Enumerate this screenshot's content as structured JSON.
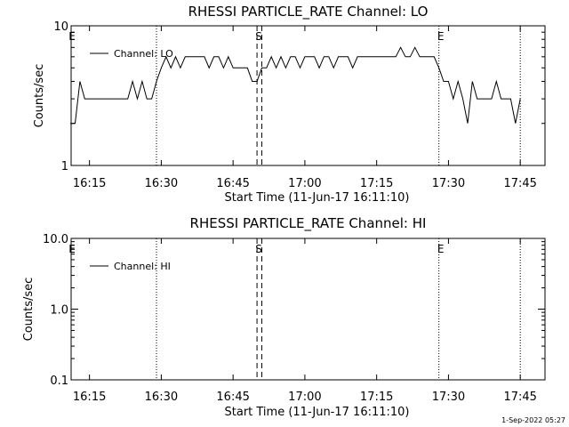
{
  "footer": {
    "timestamp": "1-Sep-2022 05:27"
  },
  "chart_data": [
    {
      "type": "line",
      "title": "RHESSI PARTICLE_RATE Channel: LO",
      "xlabel": "Start Time (11-Jun-17 16:11:10)",
      "ylabel": "Counts/sec",
      "yscale": "log",
      "ylim": [
        1,
        10
      ],
      "xlim": [
        "16:11:10",
        "17:50:10"
      ],
      "y_ticks": [
        "1",
        "10"
      ],
      "x_ticks": [
        "16:15",
        "16:30",
        "16:45",
        "17:00",
        "17:15",
        "17:30",
        "17:45"
      ],
      "legend": {
        "placement": "top-left",
        "entries": [
          "Channel: LO"
        ]
      },
      "vlines_dotted": [
        "16:29",
        "17:28",
        "17:45"
      ],
      "vlines_dashed": [
        "16:50",
        "16:51"
      ],
      "annotations": [
        {
          "text": "E",
          "at": "16:11"
        },
        {
          "text": "S",
          "at": "16:50"
        },
        {
          "text": "E",
          "at": "17:28"
        }
      ],
      "series": [
        {
          "name": "Channel: LO",
          "x": [
            "16:11",
            "16:12",
            "16:13",
            "16:14",
            "16:15",
            "16:16",
            "16:17",
            "16:18",
            "16:19",
            "16:20",
            "16:21",
            "16:22",
            "16:23",
            "16:24",
            "16:25",
            "16:26",
            "16:27",
            "16:28",
            "16:29",
            "16:30",
            "16:31",
            "16:32",
            "16:33",
            "16:34",
            "16:35",
            "16:36",
            "16:37",
            "16:38",
            "16:39",
            "16:40",
            "16:41",
            "16:42",
            "16:43",
            "16:44",
            "16:45",
            "16:46",
            "16:47",
            "16:48",
            "16:49",
            "16:50",
            "16:51",
            "16:52",
            "16:53",
            "16:54",
            "16:55",
            "16:56",
            "16:57",
            "16:58",
            "16:59",
            "17:00",
            "17:01",
            "17:02",
            "17:03",
            "17:04",
            "17:05",
            "17:06",
            "17:07",
            "17:08",
            "17:09",
            "17:10",
            "17:11",
            "17:12",
            "17:13",
            "17:14",
            "17:15",
            "17:16",
            "17:17",
            "17:18",
            "17:19",
            "17:20",
            "17:21",
            "17:22",
            "17:23",
            "17:24",
            "17:25",
            "17:26",
            "17:27",
            "17:28",
            "17:29",
            "17:30",
            "17:31",
            "17:32",
            "17:33",
            "17:34",
            "17:35",
            "17:36",
            "17:37",
            "17:38",
            "17:39",
            "17:40",
            "17:41",
            "17:42",
            "17:43",
            "17:44",
            "17:45"
          ],
          "y": [
            2,
            2,
            4,
            3,
            3,
            3,
            3,
            3,
            3,
            3,
            3,
            3,
            3,
            4,
            3,
            4,
            3,
            3,
            4,
            5,
            6,
            5,
            6,
            5,
            6,
            6,
            6,
            6,
            6,
            5,
            6,
            6,
            5,
            6,
            5,
            5,
            5,
            5,
            4,
            4,
            5,
            5,
            6,
            5,
            6,
            5,
            6,
            6,
            5,
            6,
            6,
            6,
            5,
            6,
            6,
            5,
            6,
            6,
            6,
            5,
            6,
            6,
            6,
            6,
            6,
            6,
            6,
            6,
            6,
            7,
            6,
            6,
            7,
            6,
            6,
            6,
            6,
            5,
            4,
            4,
            3,
            4,
            3,
            2,
            4,
            3,
            3,
            3,
            3,
            4,
            3,
            3,
            3,
            2,
            3
          ]
        }
      ]
    },
    {
      "type": "line",
      "title": "RHESSI PARTICLE_RATE Channel: HI",
      "xlabel": "Start Time (11-Jun-17 16:11:10)",
      "ylabel": "Counts/sec",
      "yscale": "log",
      "ylim": [
        0.1,
        10
      ],
      "xlim": [
        "16:11:10",
        "17:50:10"
      ],
      "y_ticks": [
        "0.1",
        "1.0",
        "10.0"
      ],
      "x_ticks": [
        "16:15",
        "16:30",
        "16:45",
        "17:00",
        "17:15",
        "17:30",
        "17:45"
      ],
      "legend": {
        "placement": "top-left",
        "entries": [
          "Channel: HI"
        ]
      },
      "vlines_dotted": [
        "16:29",
        "17:28",
        "17:45"
      ],
      "vlines_dashed": [
        "16:50",
        "16:51"
      ],
      "annotations": [
        {
          "text": "E",
          "at": "16:11"
        },
        {
          "text": "S",
          "at": "16:50"
        },
        {
          "text": "E",
          "at": "17:28"
        }
      ],
      "series": [
        {
          "name": "Channel: HI",
          "x": [],
          "y": []
        }
      ]
    }
  ]
}
